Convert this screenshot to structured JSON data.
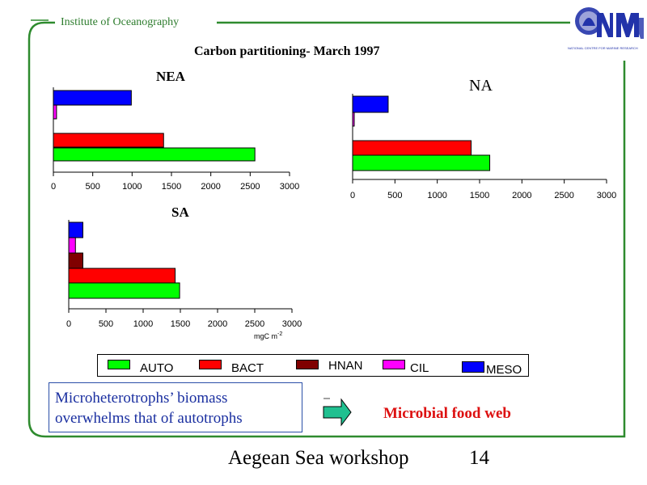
{
  "header": {
    "institute": "Institute of Oceanography"
  },
  "logo": {
    "name": "NCMR",
    "caption": "NATIONAL CENTRE FOR MARINE RESEARCH"
  },
  "main_title": "Carbon partitioning- March 1997",
  "unit_label": "mgC m-2",
  "legend": [
    {
      "label": "AUTO",
      "color": "#00ff00"
    },
    {
      "label": "BACT",
      "color": "#ff0000"
    },
    {
      "label": "HNAN",
      "color": "#800000"
    },
    {
      "label": "CIL",
      "color": "#ff00ff"
    },
    {
      "label": "MESO",
      "color": "#0000ff"
    }
  ],
  "note": {
    "line1": "Microheterotrophs’ biomass",
    "line2": "overwhelms that of autotrophs"
  },
  "food_web_label": "Microbial food web",
  "footer": {
    "left": "Aegean Sea workshop",
    "right": "14"
  },
  "colors": {
    "frame": "#2e8b2e",
    "note_text": "#1a2fa0",
    "food_web": "#dd1111",
    "arrow": "#20c090"
  },
  "chart_data": [
    {
      "type": "bar",
      "orientation": "horizontal",
      "title": "NEA",
      "xlim": [
        0,
        3000
      ],
      "x_ticks": [
        0,
        500,
        1000,
        1500,
        2000,
        2500,
        3000
      ],
      "categories": [
        "AUTO",
        "BACT",
        "HNAN",
        "CIL",
        "MESO"
      ],
      "values": [
        2560,
        1400,
        0,
        40,
        990
      ]
    },
    {
      "type": "bar",
      "orientation": "horizontal",
      "title": "NA",
      "xlim": [
        0,
        3000
      ],
      "x_ticks": [
        0,
        500,
        1000,
        1500,
        2000,
        2500,
        3000
      ],
      "categories": [
        "AUTO",
        "BACT",
        "HNAN",
        "CIL",
        "MESO"
      ],
      "values": [
        1620,
        1400,
        0,
        15,
        420
      ]
    },
    {
      "type": "bar",
      "orientation": "horizontal",
      "title": "SA",
      "xlabel": "mgC m-2",
      "xlim": [
        0,
        3000
      ],
      "x_ticks": [
        0,
        500,
        1000,
        1500,
        2000,
        2500,
        3000
      ],
      "categories": [
        "AUTO",
        "BACT",
        "HNAN",
        "CIL",
        "MESO"
      ],
      "values": [
        1490,
        1430,
        190,
        90,
        190
      ]
    }
  ]
}
